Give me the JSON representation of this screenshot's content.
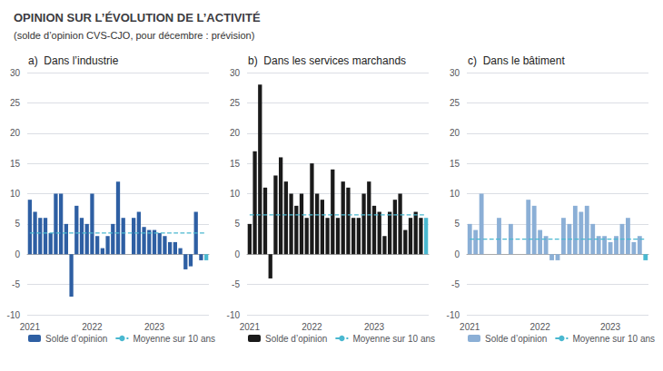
{
  "title": "OPINION SUR L’ÉVOLUTION DE L’ACTIVITÉ",
  "subtitle": "(solde d’opinion CVS-CJO, pour décembre : prévision)",
  "chart_data": [
    {
      "type": "bar",
      "title": "a)  Dans l’industrie",
      "categories": [
        "2021",
        null,
        null,
        null,
        null,
        null,
        null,
        null,
        null,
        null,
        null,
        null,
        "2022",
        null,
        null,
        null,
        null,
        null,
        null,
        null,
        null,
        null,
        null,
        null,
        "2023",
        null,
        null,
        null,
        null,
        null,
        null,
        null,
        null,
        null,
        null
      ],
      "series": [
        {
          "name": "Solde d’opinion",
          "type": "bar",
          "color": "#2e5fa3",
          "colors": [
            "#2e5fa3",
            "#2e5fa3",
            "#2e5fa3",
            "#2e5fa3",
            "#2e5fa3",
            "#2e5fa3",
            "#2e5fa3",
            "#2e5fa3",
            "#2e5fa3",
            "#2e5fa3",
            "#2e5fa3",
            "#2e5fa3",
            "#2e5fa3",
            "#2e5fa3",
            "#2e5fa3",
            "#2e5fa3",
            "#2e5fa3",
            "#2e5fa3",
            "#2e5fa3",
            "#2e5fa3",
            "#2e5fa3",
            "#2e5fa3",
            "#2e5fa3",
            "#2e5fa3",
            "#2e5fa3",
            "#2e5fa3",
            "#2e5fa3",
            "#2e5fa3",
            "#2e5fa3",
            "#2e5fa3",
            "#2e5fa3",
            "#2e5fa3",
            "#2e5fa3",
            "#2e5fa3",
            "#4ab8d0"
          ],
          "values": [
            9,
            7,
            6,
            6,
            3.5,
            10,
            10,
            5,
            -7,
            8,
            6,
            5,
            10,
            3,
            1,
            3,
            5,
            12,
            6,
            0,
            6,
            7,
            4.5,
            4,
            4,
            3.5,
            3,
            2,
            2,
            1,
            -2.5,
            -2,
            7,
            -1,
            -1
          ]
        },
        {
          "name": "Moyenne sur 10 ans",
          "type": "line",
          "color": "#4ab8d0",
          "line_style": "dashed",
          "values": [
            3.5,
            3.5,
            3.5,
            3.5,
            3.5,
            3.5,
            3.5,
            3.5,
            3.5,
            3.5,
            3.5,
            3.5,
            3.5,
            3.5,
            3.5,
            3.5,
            3.5,
            3.5,
            3.5,
            3.5,
            3.5,
            3.5,
            3.5,
            3.5,
            3.5,
            3.5,
            3.5,
            3.5,
            3.5,
            3.5,
            3.5,
            3.5,
            3.5,
            3.5,
            3.5
          ]
        }
      ],
      "ylim": [
        -10,
        30
      ],
      "yticks": [
        -10,
        -5,
        0,
        5,
        10,
        15,
        20,
        25,
        30
      ],
      "grid": true,
      "legend": "bottom"
    },
    {
      "type": "bar",
      "title": "b)  Dans les services marchands",
      "categories": [
        "2021",
        null,
        null,
        null,
        null,
        null,
        null,
        null,
        null,
        null,
        null,
        null,
        "2022",
        null,
        null,
        null,
        null,
        null,
        null,
        null,
        null,
        null,
        null,
        null,
        "2023",
        null,
        null,
        null,
        null,
        null,
        null,
        null,
        null,
        null,
        null
      ],
      "series": [
        {
          "name": "Solde d’opinion",
          "type": "bar",
          "color": "#1a1a1a",
          "colors": [
            "#1a1a1a",
            "#1a1a1a",
            "#1a1a1a",
            "#1a1a1a",
            "#1a1a1a",
            "#1a1a1a",
            "#1a1a1a",
            "#1a1a1a",
            "#1a1a1a",
            "#1a1a1a",
            "#1a1a1a",
            "#1a1a1a",
            "#1a1a1a",
            "#1a1a1a",
            "#1a1a1a",
            "#1a1a1a",
            "#1a1a1a",
            "#1a1a1a",
            "#1a1a1a",
            "#1a1a1a",
            "#1a1a1a",
            "#1a1a1a",
            "#1a1a1a",
            "#1a1a1a",
            "#1a1a1a",
            "#1a1a1a",
            "#1a1a1a",
            "#1a1a1a",
            "#1a1a1a",
            "#1a1a1a",
            "#1a1a1a",
            "#1a1a1a",
            "#1a1a1a",
            "#1a1a1a",
            "#4ab8d0"
          ],
          "values": [
            5,
            17,
            28,
            11,
            -4,
            13,
            16,
            12,
            10,
            8,
            10,
            6,
            15,
            10,
            9,
            6,
            14,
            6,
            12,
            11,
            6,
            6,
            10,
            12,
            8,
            7,
            3,
            7,
            9,
            10,
            4,
            6,
            7,
            6,
            6
          ]
        },
        {
          "name": "Moyenne sur 10 ans",
          "type": "line",
          "color": "#4ab8d0",
          "line_style": "dashed",
          "values": [
            6.5,
            6.5,
            6.5,
            6.5,
            6.5,
            6.5,
            6.5,
            6.5,
            6.5,
            6.5,
            6.5,
            6.5,
            6.5,
            6.5,
            6.5,
            6.5,
            6.5,
            6.5,
            6.5,
            6.5,
            6.5,
            6.5,
            6.5,
            6.5,
            6.5,
            6.5,
            6.5,
            6.5,
            6.5,
            6.5,
            6.5,
            6.5,
            6.5,
            6.5,
            6.5
          ]
        }
      ],
      "ylim": [
        -10,
        30
      ],
      "yticks": [
        -10,
        -5,
        0,
        5,
        10,
        15,
        20,
        25,
        30
      ],
      "grid": true,
      "legend": "bottom"
    },
    {
      "type": "bar",
      "title": "c)  Dans le bâtiment",
      "categories": [
        "2021",
        null,
        null,
        null,
        null,
        null,
        null,
        null,
        null,
        null,
        null,
        null,
        "2022",
        null,
        null,
        null,
        null,
        null,
        null,
        null,
        null,
        null,
        null,
        null,
        "2023",
        null,
        null,
        null,
        null,
        null,
        null
      ],
      "series": [
        {
          "name": "Solde d’opinion",
          "type": "bar",
          "color": "#8bafd6",
          "colors": [
            "#8bafd6",
            "#8bafd6",
            "#8bafd6",
            "#8bafd6",
            "#8bafd6",
            "#8bafd6",
            "#8bafd6",
            "#8bafd6",
            "#8bafd6",
            "#8bafd6",
            "#8bafd6",
            "#8bafd6",
            "#8bafd6",
            "#8bafd6",
            "#8bafd6",
            "#8bafd6",
            "#8bafd6",
            "#8bafd6",
            "#8bafd6",
            "#8bafd6",
            "#8bafd6",
            "#8bafd6",
            "#8bafd6",
            "#8bafd6",
            "#8bafd6",
            "#8bafd6",
            "#8bafd6",
            "#8bafd6",
            "#8bafd6",
            "#8bafd6",
            "#4ab8d0"
          ],
          "values": [
            5,
            4,
            10,
            0,
            0,
            6,
            0,
            5,
            0,
            0,
            9,
            8,
            4,
            3,
            -1,
            -1,
            6,
            5,
            8,
            7,
            8,
            5,
            3,
            3,
            2,
            3,
            5,
            6,
            2,
            3,
            -1
          ]
        },
        {
          "name": "Moyenne sur 10 ans",
          "type": "line",
          "color": "#4ab8d0",
          "line_style": "dashed",
          "values": [
            2.5,
            2.5,
            2.5,
            2.5,
            2.5,
            2.5,
            2.5,
            2.5,
            2.5,
            2.5,
            2.5,
            2.5,
            2.5,
            2.5,
            2.5,
            2.5,
            2.5,
            2.5,
            2.5,
            2.5,
            2.5,
            2.5,
            2.5,
            2.5,
            2.5,
            2.5,
            2.5,
            2.5,
            2.5,
            2.5,
            2.5
          ]
        }
      ],
      "ylim": [
        -10,
        30
      ],
      "yticks": [
        -10,
        -5,
        0,
        5,
        10,
        15,
        20,
        25,
        30
      ],
      "grid": true,
      "legend": "bottom"
    }
  ]
}
